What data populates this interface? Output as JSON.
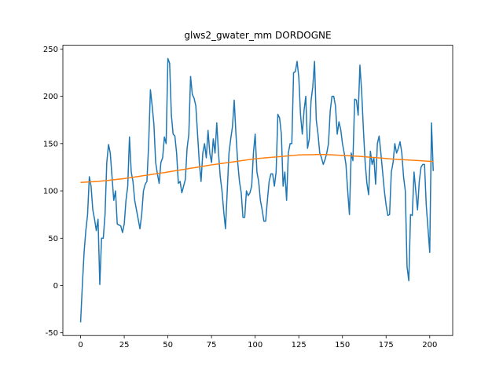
{
  "chart_data": {
    "type": "line",
    "title": "glws2_gwater_mm DORDOGNE",
    "x": [
      0,
      1,
      2,
      3,
      4,
      5,
      6,
      7,
      8,
      9,
      10,
      11,
      12,
      13,
      14,
      15,
      16,
      17,
      18,
      19,
      20,
      21,
      22,
      23,
      24,
      25,
      26,
      27,
      28,
      29,
      30,
      31,
      32,
      33,
      34,
      35,
      36,
      37,
      38,
      39,
      40,
      41,
      42,
      43,
      44,
      45,
      46,
      47,
      48,
      49,
      50,
      51,
      52,
      53,
      54,
      55,
      56,
      57,
      58,
      59,
      60,
      61,
      62,
      63,
      64,
      65,
      66,
      67,
      68,
      69,
      70,
      71,
      72,
      73,
      74,
      75,
      76,
      77,
      78,
      79,
      80,
      81,
      82,
      83,
      84,
      85,
      86,
      87,
      88,
      89,
      90,
      91,
      92,
      93,
      94,
      95,
      96,
      97,
      98,
      99,
      100,
      101,
      102,
      103,
      104,
      105,
      106,
      107,
      108,
      109,
      110,
      111,
      112,
      113,
      114,
      115,
      116,
      117,
      118,
      119,
      120,
      121,
      122,
      123,
      124,
      125,
      126,
      127,
      128,
      129,
      130,
      131,
      132,
      133,
      134,
      135,
      136,
      137,
      138,
      139,
      140,
      141,
      142,
      143,
      144,
      145,
      146,
      147,
      148,
      149,
      150,
      151,
      152,
      153,
      154,
      155,
      156,
      157,
      158,
      159,
      160,
      161,
      162,
      163,
      164,
      165,
      166,
      167,
      168,
      169,
      170,
      171,
      172,
      173,
      174,
      175,
      176,
      177,
      178,
      179,
      180,
      181,
      182,
      183,
      184,
      185,
      186,
      187,
      188,
      189,
      190,
      191,
      192,
      193,
      194,
      195,
      196,
      197,
      198,
      199,
      200,
      201,
      202
    ],
    "series": [
      {
        "color": "#1f77b4",
        "values": [
          -39,
          0,
          35,
          58,
          75,
          115,
          105,
          80,
          70,
          58,
          70,
          1,
          50,
          50,
          75,
          130,
          149,
          140,
          115,
          90,
          100,
          65,
          64,
          63,
          56,
          65,
          90,
          105,
          157,
          120,
          110,
          90,
          80,
          70,
          60,
          75,
          100,
          107,
          110,
          150,
          207,
          190,
          170,
          130,
          118,
          108,
          130,
          135,
          157,
          150,
          240,
          235,
          180,
          160,
          158,
          140,
          108,
          110,
          98,
          105,
          112,
          145,
          160,
          221,
          202,
          198,
          190,
          160,
          130,
          110,
          140,
          150,
          135,
          164,
          140,
          130,
          155,
          140,
          172,
          140,
          115,
          100,
          78,
          60,
          100,
          140,
          155,
          168,
          196,
          160,
          130,
          110,
          98,
          72,
          72,
          100,
          95,
          98,
          105,
          140,
          160,
          120,
          110,
          90,
          80,
          68,
          68,
          90,
          110,
          118,
          118,
          105,
          120,
          181,
          177,
          160,
          105,
          120,
          90,
          140,
          150,
          150,
          225,
          226,
          237,
          220,
          180,
          160,
          185,
          200,
          145,
          155,
          195,
          210,
          237,
          175,
          160,
          140,
          135,
          128,
          133,
          140,
          150,
          185,
          200,
          200,
          190,
          160,
          173,
          165,
          150,
          140,
          128,
          100,
          75,
          140,
          132,
          197,
          196,
          180,
          233,
          205,
          165,
          130,
          108,
          96,
          142,
          128,
          135,
          107,
          150,
          158,
          140,
          120,
          100,
          85,
          74,
          75,
          120,
          130,
          150,
          140,
          145,
          152,
          140,
          115,
          100,
          20,
          5,
          75,
          74,
          120,
          100,
          80,
          110,
          125,
          128,
          128,
          85,
          60,
          35,
          172,
          121
        ]
      },
      {
        "color": "#ff7f0e",
        "values": [
          109.0,
          109.1,
          109.2,
          109.3,
          109.4,
          109.5,
          109.6,
          109.7,
          109.8,
          109.9,
          110.0,
          110.2,
          110.4,
          110.6,
          110.8,
          111.0,
          111.2,
          111.4,
          111.6,
          111.8,
          112.0,
          112.2,
          112.4,
          112.6,
          112.8,
          113.0,
          113.3,
          113.6,
          113.8,
          114.1,
          114.4,
          114.7,
          115.0,
          115.2,
          115.5,
          115.8,
          116.1,
          116.4,
          116.6,
          116.9,
          117.2,
          117.5,
          117.8,
          118.0,
          118.3,
          118.6,
          118.9,
          119.2,
          119.4,
          119.7,
          120.0,
          120.3,
          120.6,
          120.9,
          121.2,
          121.5,
          121.8,
          122.1,
          122.4,
          122.7,
          123.0,
          123.3,
          123.6,
          123.9,
          124.2,
          124.5,
          124.8,
          125.1,
          125.4,
          125.7,
          126.0,
          126.3,
          126.6,
          126.9,
          127.2,
          127.5,
          127.8,
          128.0,
          128.3,
          128.5,
          128.8,
          129.1,
          129.3,
          129.6,
          129.8,
          130.1,
          130.4,
          130.6,
          130.9,
          131.1,
          131.4,
          131.7,
          131.9,
          132.2,
          132.4,
          132.7,
          133.0,
          133.2,
          133.5,
          133.7,
          134.0,
          134.2,
          134.3,
          134.5,
          134.6,
          134.8,
          135.0,
          135.1,
          135.3,
          135.4,
          135.6,
          135.8,
          135.9,
          136.1,
          136.2,
          136.4,
          136.6,
          136.7,
          136.9,
          137.0,
          137.2,
          137.4,
          137.5,
          137.7,
          137.8,
          138.0,
          138.0,
          138.1,
          138.1,
          138.2,
          138.2,
          138.3,
          138.3,
          138.4,
          138.4,
          138.5,
          138.5,
          138.5,
          138.5,
          138.5,
          138.5,
          138.4,
          138.3,
          138.2,
          138.1,
          138.0,
          137.9,
          137.8,
          137.7,
          137.6,
          137.5,
          137.4,
          137.3,
          137.2,
          137.1,
          137.0,
          136.9,
          136.8,
          136.7,
          136.6,
          136.5,
          136.4,
          136.2,
          136.1,
          135.9,
          135.8,
          135.6,
          135.5,
          135.3,
          135.2,
          135.0,
          134.9,
          134.7,
          134.6,
          134.4,
          134.3,
          134.1,
          134.0,
          133.8,
          133.7,
          133.5,
          133.4,
          133.3,
          133.2,
          133.1,
          133.0,
          132.8,
          132.7,
          132.6,
          132.5,
          132.4,
          132.3,
          132.2,
          132.1,
          132.0,
          131.9,
          131.8,
          131.6,
          131.5,
          131.4,
          131.3,
          131.2,
          131.0
        ]
      }
    ],
    "xlim": [
      -10.15,
      213.15
    ],
    "xticks": [
      0,
      25,
      50,
      75,
      100,
      125,
      150,
      175,
      200
    ],
    "ylim": [
      -52.9,
      254.0
    ],
    "yticks": [
      -50,
      0,
      50,
      100,
      150,
      200,
      250
    ]
  }
}
